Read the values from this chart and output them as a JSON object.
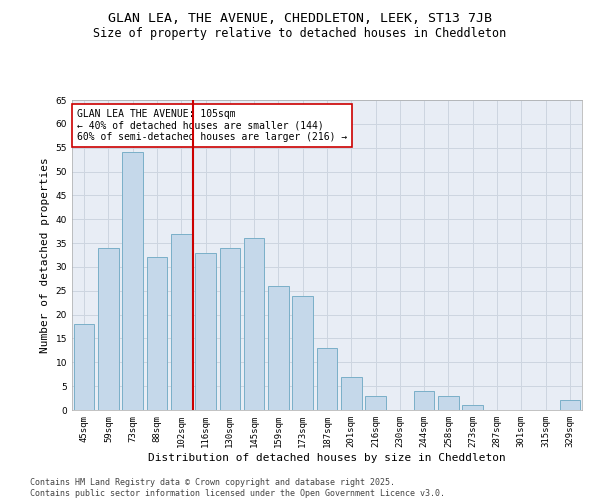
{
  "title": "GLAN LEA, THE AVENUE, CHEDDLETON, LEEK, ST13 7JB",
  "subtitle": "Size of property relative to detached houses in Cheddleton",
  "xlabel": "Distribution of detached houses by size in Cheddleton",
  "ylabel": "Number of detached properties",
  "categories": [
    "45sqm",
    "59sqm",
    "73sqm",
    "88sqm",
    "102sqm",
    "116sqm",
    "130sqm",
    "145sqm",
    "159sqm",
    "173sqm",
    "187sqm",
    "201sqm",
    "216sqm",
    "230sqm",
    "244sqm",
    "258sqm",
    "273sqm",
    "287sqm",
    "301sqm",
    "315sqm",
    "329sqm"
  ],
  "values": [
    18,
    34,
    54,
    32,
    37,
    33,
    34,
    36,
    26,
    24,
    13,
    7,
    3,
    0,
    4,
    3,
    1,
    0,
    0,
    0,
    2
  ],
  "bar_color": "#c5d8ea",
  "bar_edge_color": "#7aafc8",
  "vline_x_index": 4,
  "vline_color": "#cc0000",
  "annotation_text": "GLAN LEA THE AVENUE: 105sqm\n← 40% of detached houses are smaller (144)\n60% of semi-detached houses are larger (216) →",
  "annotation_box_color": "#ffffff",
  "annotation_box_edge": "#cc0000",
  "ylim": [
    0,
    65
  ],
  "yticks": [
    0,
    5,
    10,
    15,
    20,
    25,
    30,
    35,
    40,
    45,
    50,
    55,
    60,
    65
  ],
  "grid_color": "#cdd5e0",
  "bg_color": "#e8edf5",
  "footer": "Contains HM Land Registry data © Crown copyright and database right 2025.\nContains public sector information licensed under the Open Government Licence v3.0.",
  "title_fontsize": 9.5,
  "subtitle_fontsize": 8.5,
  "xlabel_fontsize": 8,
  "ylabel_fontsize": 8,
  "tick_fontsize": 6.5,
  "annotation_fontsize": 7,
  "footer_fontsize": 6
}
